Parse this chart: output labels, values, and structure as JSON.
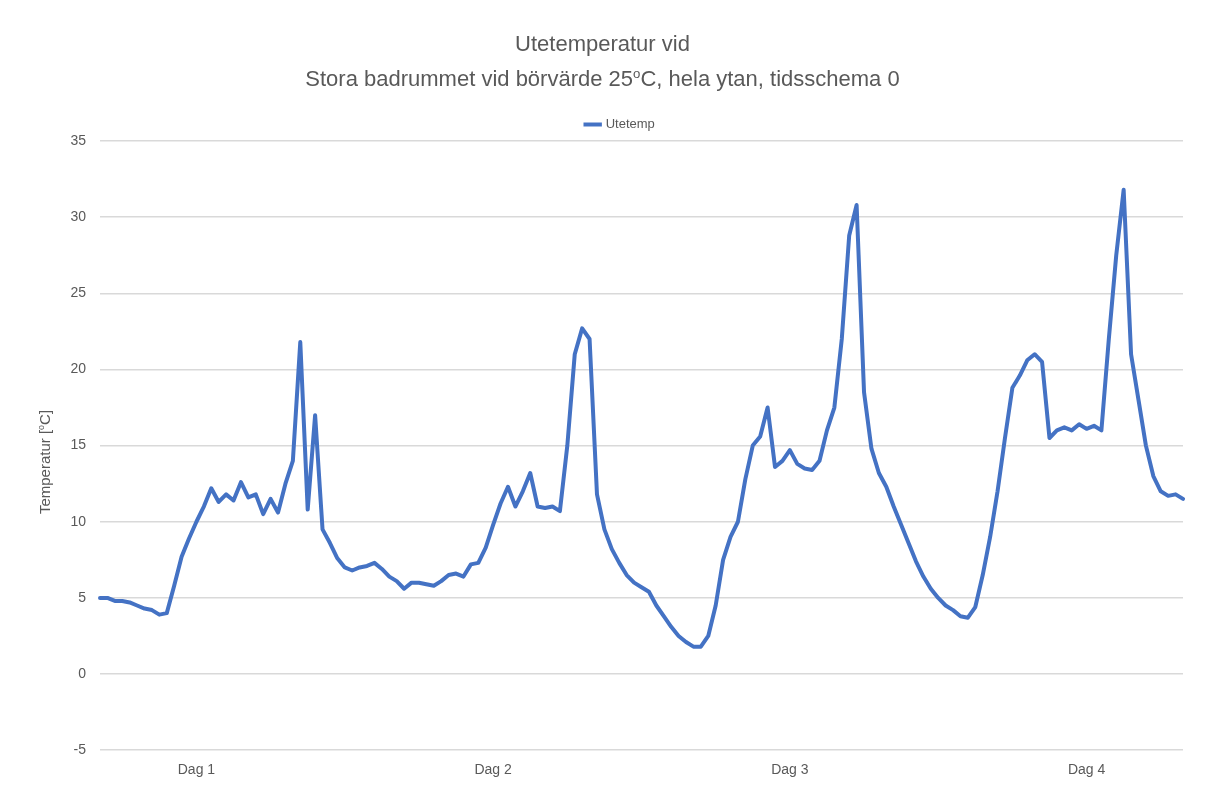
{
  "chart_data": {
    "type": "line",
    "title": "Utetemperatur vid\nStora badrummet vid börvärde 25$^{o}$C, hela ytan, tidsschema 0",
    "ylabel": "Temperatur [$^{o}$C]",
    "categories": [
      null,
      null,
      null,
      null,
      null,
      null,
      null,
      null,
      null,
      null,
      null,
      null,
      null,
      "Dag 1",
      null,
      null,
      null,
      null,
      null,
      null,
      null,
      null,
      null,
      null,
      null,
      null,
      null,
      null,
      null,
      null,
      null,
      null,
      null,
      null,
      null,
      null,
      null,
      null,
      null,
      null,
      null,
      null,
      null,
      null,
      null,
      null,
      null,
      null,
      null,
      null,
      null,
      null,
      null,
      "Dag 2",
      null,
      null,
      null,
      null,
      null,
      null,
      null,
      null,
      null,
      null,
      null,
      null,
      null,
      null,
      null,
      null,
      null,
      null,
      null,
      null,
      null,
      null,
      null,
      null,
      null,
      null,
      null,
      null,
      null,
      null,
      null,
      null,
      null,
      null,
      null,
      null,
      null,
      null,
      null,
      "Dag 3",
      null,
      null,
      null,
      null,
      null,
      null,
      null,
      null,
      null,
      null,
      null,
      null,
      null,
      null,
      null,
      null,
      null,
      null,
      null,
      null,
      null,
      null,
      null,
      null,
      null,
      null,
      null,
      null,
      null,
      null,
      null,
      null,
      null,
      null,
      null,
      null,
      null,
      null,
      null,
      "Dag 4",
      null,
      null,
      null,
      null,
      null,
      null,
      null,
      null,
      null,
      null,
      null,
      null,
      null
    ],
    "series": [
      {
        "name": "Utetemp",
        "color": "#4472c4",
        "values": [
          5.0,
          5.0,
          4.8,
          4.8,
          4.7,
          4.5,
          4.3,
          4.2,
          3.9,
          4.0,
          5.8,
          7.7,
          8.9,
          10.0,
          11.0,
          12.2,
          11.3,
          11.8,
          11.4,
          12.6,
          11.6,
          11.8,
          10.5,
          11.5,
          10.6,
          12.5,
          14.0,
          21.8,
          10.8,
          17.0,
          9.5,
          8.6,
          7.6,
          7.0,
          6.8,
          7.0,
          7.1,
          7.3,
          6.9,
          6.4,
          6.1,
          5.6,
          6.0,
          6.0,
          5.9,
          5.8,
          6.1,
          6.5,
          6.6,
          6.4,
          7.2,
          7.3,
          8.3,
          9.8,
          11.2,
          12.3,
          11.0,
          12.0,
          13.2,
          11.0,
          10.9,
          11.0,
          10.7,
          15.0,
          21.0,
          22.7,
          22.0,
          11.8,
          9.5,
          8.2,
          7.3,
          6.5,
          6.0,
          5.7,
          5.4,
          4.5,
          3.8,
          3.1,
          2.5,
          2.1,
          1.8,
          1.8,
          2.5,
          4.5,
          7.5,
          9.0,
          10.0,
          12.8,
          15.0,
          15.6,
          17.5,
          13.6,
          14.0,
          14.7,
          13.8,
          13.5,
          13.4,
          14.0,
          16.0,
          17.5,
          22.0,
          28.8,
          30.8,
          18.5,
          14.8,
          13.2,
          12.3,
          11.0,
          9.8,
          8.6,
          7.4,
          6.4,
          5.6,
          5.0,
          4.5,
          4.2,
          3.8,
          3.7,
          4.4,
          6.5,
          9.0,
          12.0,
          15.5,
          18.8,
          19.6,
          20.6,
          21.0,
          20.5,
          15.5,
          16.0,
          16.2,
          16.0,
          16.4,
          16.1,
          16.3,
          16.0,
          22.0,
          27.5,
          31.8,
          21.0,
          18.0,
          15.0,
          13.0,
          12.0,
          11.7,
          11.8,
          11.5
        ]
      }
    ],
    "ylim": [
      -5,
      35
    ],
    "yticks": [
      -5,
      0,
      5,
      10,
      15,
      20,
      25,
      30,
      35
    ],
    "grid": "y",
    "legend": "top",
    "marker": "none",
    "line_style": "solid"
  }
}
